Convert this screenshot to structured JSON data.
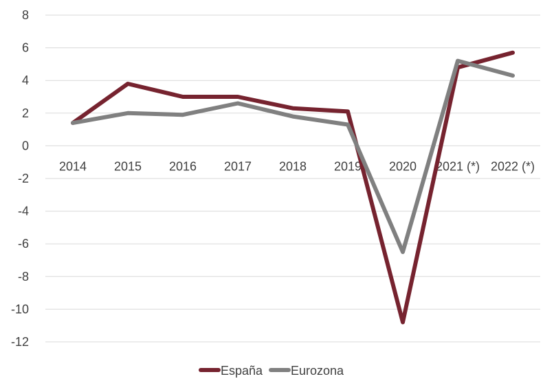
{
  "chart_data": {
    "type": "line",
    "title": "",
    "xlabel": "",
    "ylabel": "",
    "categories": [
      "2014",
      "2015",
      "2016",
      "2017",
      "2018",
      "2019",
      "2020",
      "2021 (*)",
      "2022 (*)"
    ],
    "ylim": [
      -12,
      8
    ],
    "yticks": [
      8,
      6,
      4,
      2,
      0,
      -2,
      -4,
      -6,
      -8,
      -10,
      -12
    ],
    "grid": true,
    "legend_position": "bottom",
    "series": [
      {
        "name": "España",
        "color": "#76232F",
        "values": [
          1.4,
          3.8,
          3.0,
          3.0,
          2.3,
          2.1,
          -10.8,
          4.8,
          5.7
        ]
      },
      {
        "name": "Eurozona",
        "color": "#808080",
        "values": [
          1.4,
          2.0,
          1.9,
          2.6,
          1.8,
          1.3,
          -6.5,
          5.2,
          4.3
        ]
      }
    ]
  }
}
